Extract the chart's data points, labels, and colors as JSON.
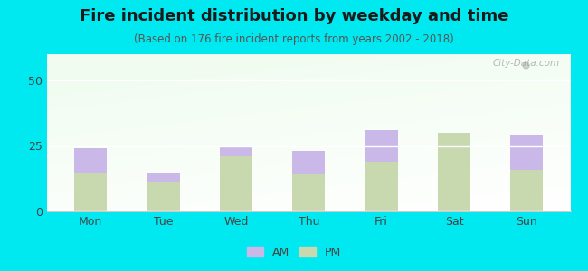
{
  "title": "Fire incident distribution by weekday and time",
  "subtitle": "(Based on 176 fire incident reports from years 2002 - 2018)",
  "days": [
    "Mon",
    "Tue",
    "Wed",
    "Thu",
    "Fri",
    "Sat",
    "Sun"
  ],
  "pm_values": [
    15,
    11,
    21,
    14,
    19,
    30,
    16
  ],
  "am_values": [
    9,
    4,
    4,
    9,
    12,
    0,
    13
  ],
  "am_color": "#c9b8e8",
  "pm_color": "#c8d9b0",
  "background_outer": "#00e8f0",
  "yticks": [
    0,
    25,
    50
  ],
  "ylim": [
    0,
    60
  ],
  "bar_width": 0.45,
  "title_fontsize": 13,
  "subtitle_fontsize": 8.5,
  "tick_fontsize": 9,
  "legend_fontsize": 9
}
